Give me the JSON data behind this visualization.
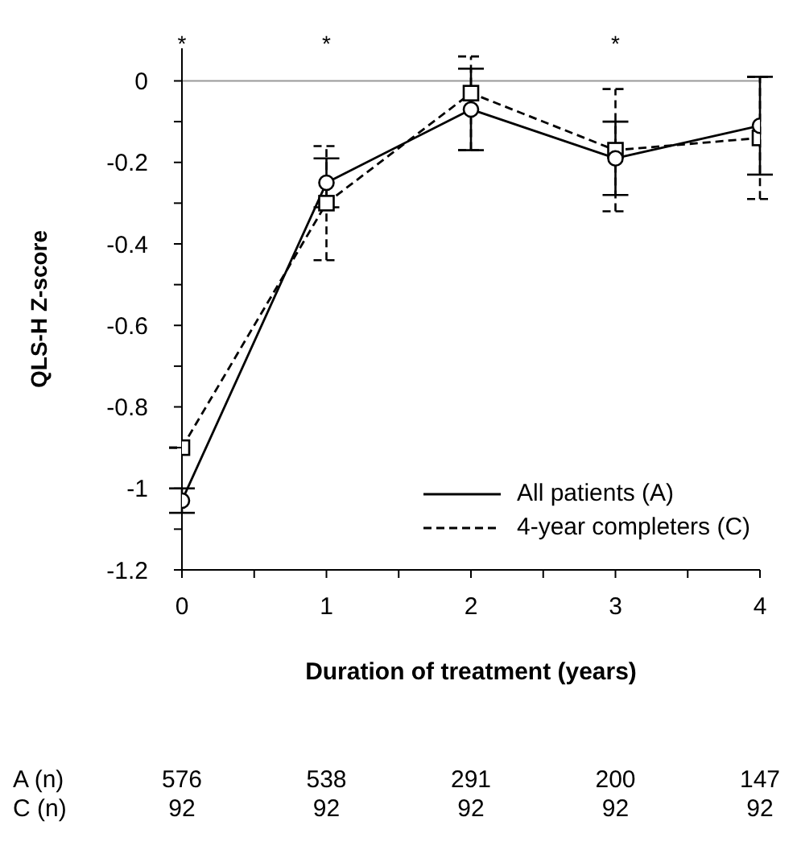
{
  "chart_data": {
    "type": "line",
    "xlabel": "Duration of treatment (years)",
    "ylabel": "QLS-H Z-score",
    "x": [
      0,
      1,
      2,
      3,
      4
    ],
    "series": [
      {
        "name": "All patients (A)",
        "color": "#000000",
        "marker": "circle",
        "line_style": "solid",
        "values": [
          -1.03,
          -0.25,
          -0.07,
          -0.19,
          -0.11
        ],
        "errors": [
          0.03,
          0.06,
          0.1,
          0.09,
          0.12
        ]
      },
      {
        "name": "4-year completers (C)",
        "color": "#000000",
        "marker": "square",
        "line_style": "dashed",
        "values": [
          -0.9,
          -0.3,
          -0.03,
          -0.17,
          -0.14
        ],
        "errors": [
          null,
          [
            -0.44,
            -0.16
          ],
          [
            -0.17,
            0.06
          ],
          [
            -0.32,
            -0.02
          ],
          0.15
        ]
      }
    ],
    "xlim": [
      0,
      4
    ],
    "xticks": [
      0,
      {
        "value": 0.5,
        "label": null
      },
      1,
      {
        "value": 1.5,
        "label": null
      },
      2,
      {
        "value": 2.5,
        "label": null
      },
      3,
      {
        "value": 3.5,
        "label": null
      },
      4
    ],
    "ylim": [
      -1.2,
      0.08
    ],
    "yticks": [
      -1.2,
      {
        "value": -1.1,
        "label": null
      },
      -1,
      {
        "value": -0.9,
        "label": null
      },
      -0.8,
      {
        "value": -0.7,
        "label": null
      },
      -0.6,
      {
        "value": -0.5,
        "label": null
      },
      -0.4,
      {
        "value": -0.3,
        "label": null
      },
      -0.2,
      {
        "value": -0.1,
        "label": null
      },
      0
    ],
    "ref_lines": [
      {
        "axis": "y",
        "value": 0,
        "label": null,
        "color": "#999999"
      }
    ],
    "grid": false,
    "legend": "right",
    "annotations": [
      {
        "text": "*",
        "x": 0,
        "y": 0
      },
      {
        "text": "*",
        "x": 1,
        "y": 0
      },
      {
        "text": "*",
        "x": 3,
        "y": 0
      },
      "A (n)",
      "576",
      "538",
      "291",
      "200",
      "147",
      "C (n)",
      "92",
      "92",
      "92",
      "92",
      "92"
    ]
  }
}
